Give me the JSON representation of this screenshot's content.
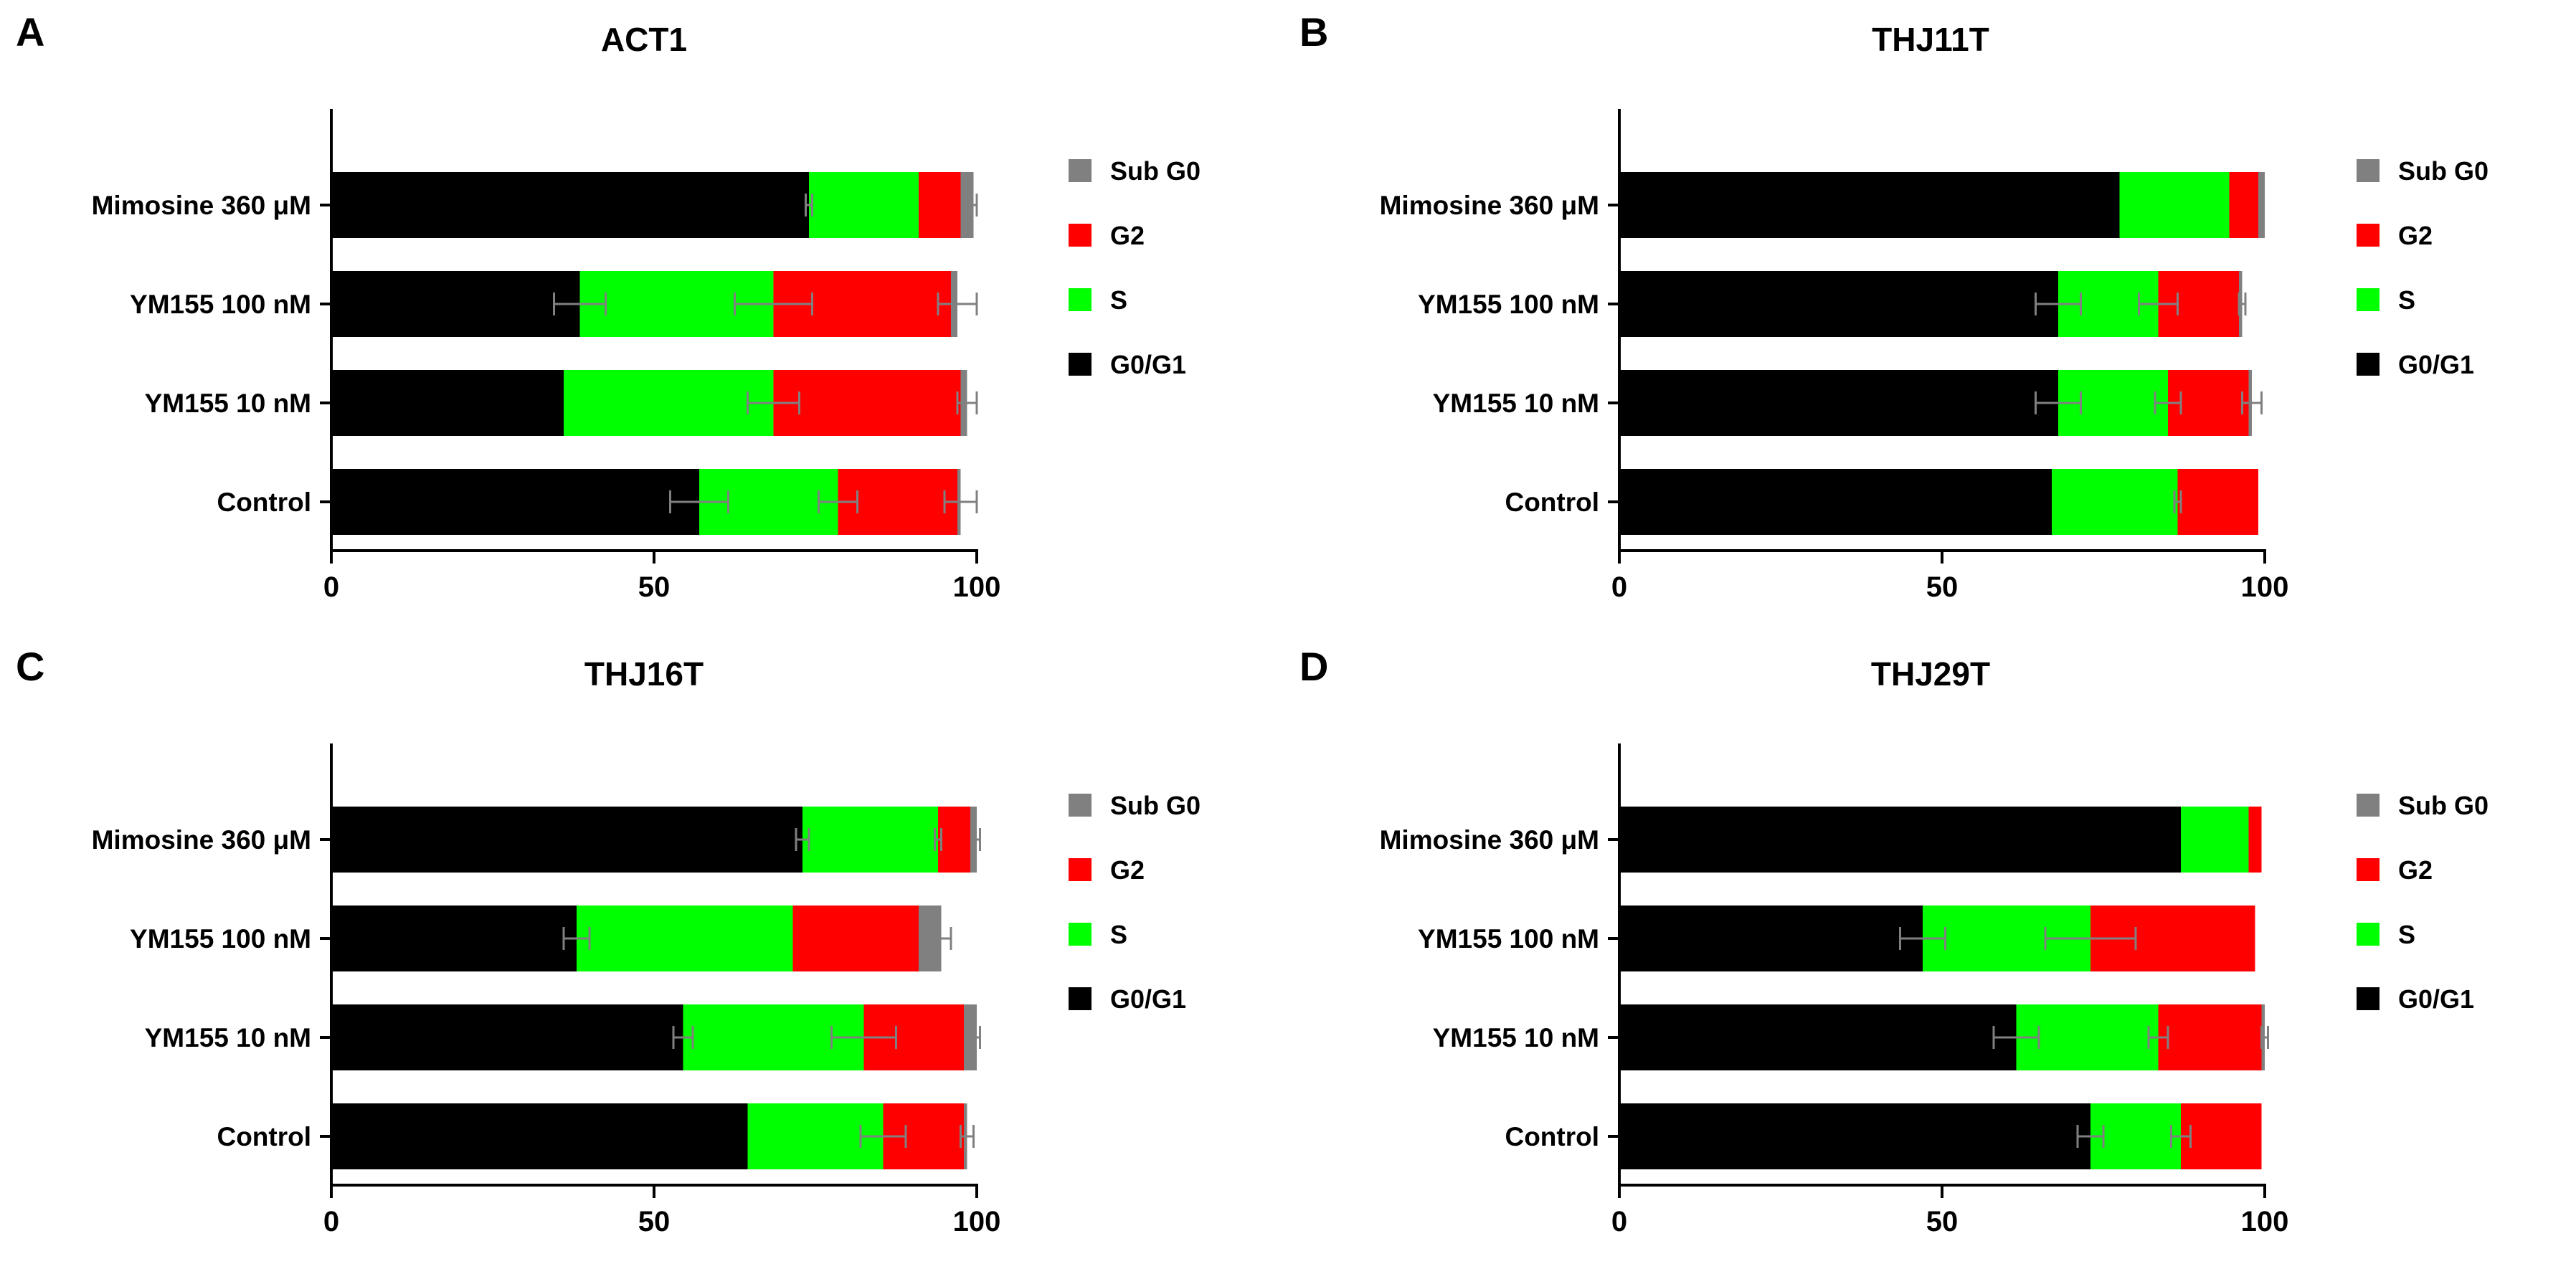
{
  "colors": {
    "sub_g0": "#808080",
    "g2": "#ff0000",
    "s": "#00ff00",
    "g0g1": "#000000",
    "error": "#808080"
  },
  "legend": [
    "Sub G0",
    "G2",
    "S",
    "G0/G1"
  ],
  "chart_data": [
    {
      "type": "bar",
      "orientation": "horizontal",
      "stacked": true,
      "panel": "A",
      "title": "ACT1",
      "categories": [
        "Mimosine 360 μM",
        "YM155 100 nM",
        "YM155 10 nM",
        "Control"
      ],
      "xlim": [
        0,
        100
      ],
      "xticks": [
        0,
        50,
        100
      ],
      "series": [
        {
          "name": "G0/G1",
          "values": [
            74,
            38.5,
            36,
            57
          ],
          "errors": [
            0.5,
            4,
            0,
            4.5
          ]
        },
        {
          "name": "S",
          "values": [
            17,
            30,
            32.5,
            21.5
          ],
          "errors": [
            0,
            6,
            4,
            3
          ]
        },
        {
          "name": "G2",
          "values": [
            6.5,
            27.5,
            29,
            18.5
          ],
          "errors": [
            0,
            0,
            0,
            0
          ]
        },
        {
          "name": "Sub G0",
          "values": [
            2,
            1,
            1,
            0.5
          ],
          "errors": [
            0.5,
            3,
            1.5,
            2.5
          ]
        }
      ]
    },
    {
      "type": "bar",
      "orientation": "horizontal",
      "stacked": true,
      "panel": "B",
      "title": "THJ11T",
      "categories": [
        "Mimosine 360 μM",
        "YM155 100 nM",
        "YM155 10 nM",
        "Control"
      ],
      "xlim": [
        0,
        100
      ],
      "xticks": [
        0,
        50,
        100
      ],
      "series": [
        {
          "name": "G0/G1",
          "values": [
            77.5,
            68,
            68,
            67
          ],
          "errors": [
            0,
            3.5,
            3.5,
            0
          ]
        },
        {
          "name": "S",
          "values": [
            17,
            15.5,
            17,
            19.5
          ],
          "errors": [
            0,
            3,
            2,
            0.5
          ]
        },
        {
          "name": "G2",
          "values": [
            4.5,
            12.5,
            12.5,
            12.5
          ],
          "errors": [
            0,
            0,
            0,
            0
          ]
        },
        {
          "name": "Sub G0",
          "values": [
            1,
            0.5,
            0.5,
            0
          ],
          "errors": [
            0,
            0.5,
            1.5,
            0
          ]
        }
      ]
    },
    {
      "type": "bar",
      "orientation": "horizontal",
      "stacked": true,
      "panel": "C",
      "title": "THJ16T",
      "categories": [
        "Mimosine 360 μM",
        "YM155 100 nM",
        "YM155 10 nM",
        "Control"
      ],
      "xlim": [
        0,
        100
      ],
      "xticks": [
        0,
        50,
        100
      ],
      "series": [
        {
          "name": "G0/G1",
          "values": [
            73,
            38,
            54.5,
            64.5
          ],
          "errors": [
            1,
            2,
            1.5,
            0
          ]
        },
        {
          "name": "S",
          "values": [
            21,
            33.5,
            28,
            21
          ],
          "errors": [
            0.5,
            0,
            5,
            3.5
          ]
        },
        {
          "name": "G2",
          "values": [
            5,
            19.5,
            15.5,
            12.5
          ],
          "errors": [
            0,
            0,
            0,
            0
          ]
        },
        {
          "name": "Sub G0",
          "values": [
            1,
            3.5,
            2,
            0.5
          ],
          "errors": [
            0.5,
            1.5,
            0.5,
            1
          ]
        }
      ]
    },
    {
      "type": "bar",
      "orientation": "horizontal",
      "stacked": true,
      "panel": "D",
      "title": "THJ29T",
      "categories": [
        "Mimosine 360 μM",
        "YM155 100 nM",
        "YM155 10 nM",
        "Control"
      ],
      "xlim": [
        0,
        100
      ],
      "xticks": [
        0,
        50,
        100
      ],
      "series": [
        {
          "name": "G0/G1",
          "values": [
            87,
            47,
            61.5,
            73
          ],
          "errors": [
            0,
            3.5,
            3.5,
            2
          ]
        },
        {
          "name": "S",
          "values": [
            10.5,
            26,
            22,
            14
          ],
          "errors": [
            0,
            7,
            1.5,
            1.5
          ]
        },
        {
          "name": "G2",
          "values": [
            2,
            25.5,
            16,
            12.5
          ],
          "errors": [
            0,
            0,
            0,
            0
          ]
        },
        {
          "name": "Sub G0",
          "values": [
            0,
            0,
            0.5,
            0
          ],
          "errors": [
            0,
            0,
            0.5,
            0
          ]
        }
      ]
    }
  ]
}
